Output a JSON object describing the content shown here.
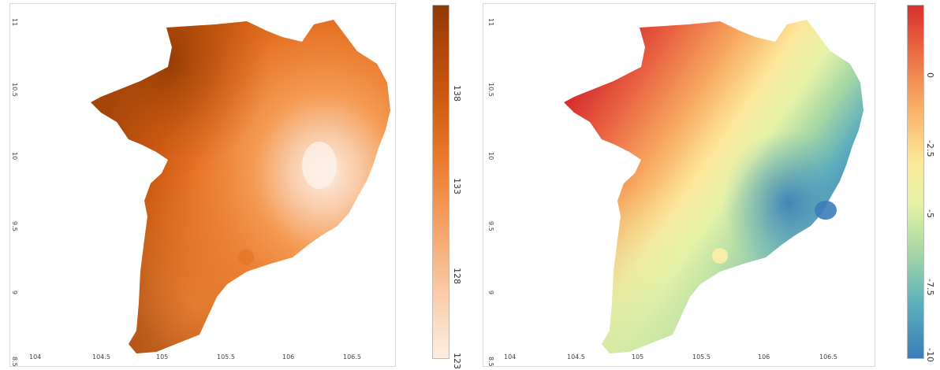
{
  "maps": [
    {
      "x_ticks": [
        "104",
        "104.5",
        "105",
        "105.5",
        "106",
        "106.5"
      ],
      "y_ticks": [
        "11",
        "10.5",
        "10",
        "9.5",
        "9",
        "8.5"
      ],
      "colorbar": {
        "ticks": [
          "138",
          "133",
          "128",
          "123"
        ],
        "colors": [
          "#8f3a05",
          "#c4500b",
          "#e0701f",
          "#f08c3e",
          "#f7ad73",
          "#fbd1b0",
          "#fdecdf"
        ]
      }
    },
    {
      "x_ticks": [
        "104",
        "104.5",
        "105",
        "105.5",
        "106",
        "106.5"
      ],
      "y_ticks": [
        "11",
        "10.5",
        "10",
        "9.5",
        "9",
        "8.5"
      ],
      "colorbar": {
        "ticks": [
          "0",
          "-2.5",
          "-5",
          "-7.5",
          "-10"
        ],
        "colors": [
          "#d7302f",
          "#ec6e45",
          "#f8ac63",
          "#fde79a",
          "#e6f3a8",
          "#a6d7a4",
          "#5fb0bd",
          "#3a7db8"
        ]
      }
    }
  ]
}
